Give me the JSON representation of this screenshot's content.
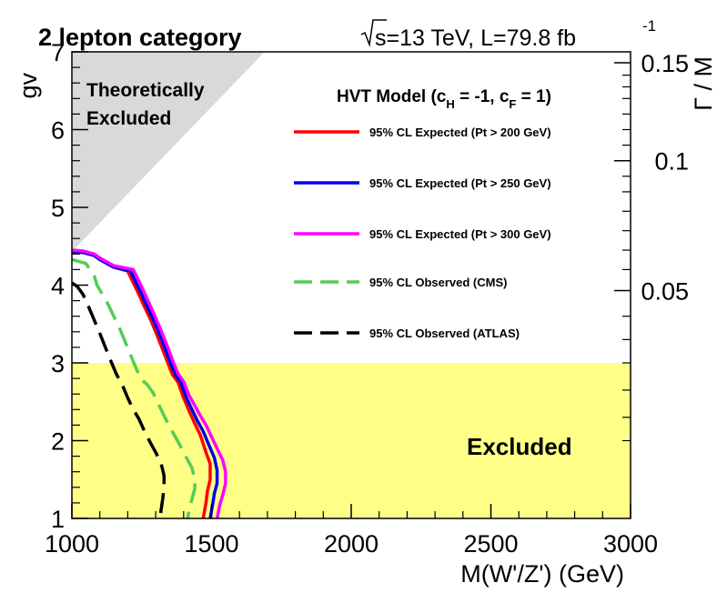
{
  "chart_data": {
    "type": "line",
    "title": "2 lepton category",
    "energy_label": "s=13 TeV, L=79.8 fb",
    "lumi_superscript": "-1",
    "xlabel": "M(W'/Z') (GeV)",
    "ylabel": "gv",
    "right_axis_label": "Γ / M",
    "xlim": [
      1000,
      3000
    ],
    "ylim": [
      1,
      7
    ],
    "x_ticks": [
      1000,
      1500,
      2000,
      2500,
      3000
    ],
    "x_tick_labels": [
      "1000",
      "1500",
      "2000",
      "2500",
      "3000"
    ],
    "y_ticks": [
      1,
      2,
      3,
      4,
      5,
      6,
      7
    ],
    "y_tick_labels": [
      "1",
      "2",
      "3",
      "4",
      "5",
      "6",
      "7"
    ],
    "right_ticks": [
      {
        "label": "0.05",
        "gv": 3.93
      },
      {
        "label": "0.1",
        "gv": 5.6
      },
      {
        "label": "0.15",
        "gv": 6.86
      }
    ],
    "legend": {
      "title_main": "HVT Model (c",
      "title_sub1": "H",
      "title_mid": " = -1, c",
      "title_sub2": "F",
      "title_end": " = 1)"
    },
    "theory_excluded": {
      "label_line1": "Theoretically",
      "label_line2": "Excluded",
      "polygon": [
        [
          1000,
          7
        ],
        [
          1690,
          7
        ],
        [
          1000,
          4.43
        ]
      ]
    },
    "excluded_band": {
      "label": "Excluded",
      "y_range": [
        1,
        3.0
      ],
      "color": "#ffff88"
    },
    "series": [
      {
        "name": "95% CL Expected (Pt > 200 GeV)",
        "color": "#ff0000",
        "dash": "solid",
        "x": [
          1000,
          1040,
          1080,
          1100,
          1150,
          1200,
          1220,
          1240,
          1260,
          1280,
          1300,
          1320,
          1340,
          1360,
          1380,
          1400,
          1420,
          1440,
          1460,
          1480,
          1495,
          1495,
          1485,
          1480,
          1470
        ],
        "y": [
          4.43,
          4.42,
          4.38,
          4.33,
          4.23,
          4.18,
          4.03,
          3.88,
          3.72,
          3.57,
          3.4,
          3.22,
          3.03,
          2.85,
          2.75,
          2.55,
          2.38,
          2.22,
          2.07,
          1.85,
          1.7,
          1.5,
          1.35,
          1.2,
          1.0
        ]
      },
      {
        "name": "95% CL Expected (Pt > 250 GeV)",
        "color": "#0000ee",
        "dash": "solid",
        "x": [
          1000,
          1040,
          1080,
          1100,
          1150,
          1210,
          1230,
          1250,
          1270,
          1290,
          1310,
          1330,
          1350,
          1370,
          1390,
          1410,
          1430,
          1450,
          1470,
          1490,
          1510,
          1520,
          1520,
          1510,
          1505,
          1495
        ],
        "y": [
          4.43,
          4.42,
          4.38,
          4.33,
          4.23,
          4.18,
          4.03,
          3.88,
          3.72,
          3.57,
          3.4,
          3.22,
          3.03,
          2.85,
          2.75,
          2.55,
          2.4,
          2.25,
          2.12,
          1.95,
          1.78,
          1.62,
          1.45,
          1.32,
          1.2,
          1.0
        ]
      },
      {
        "name": "95% CL Expected (Pt > 300 GeV)",
        "color": "#ff00ff",
        "dash": "solid",
        "x": [
          1000,
          1040,
          1080,
          1100,
          1150,
          1220,
          1240,
          1260,
          1280,
          1300,
          1320,
          1340,
          1360,
          1380,
          1400,
          1420,
          1440,
          1460,
          1480,
          1500,
          1520,
          1540,
          1550,
          1550,
          1540,
          1530,
          1520
        ],
        "y": [
          4.45,
          4.44,
          4.4,
          4.35,
          4.25,
          4.2,
          4.05,
          3.9,
          3.74,
          3.58,
          3.41,
          3.23,
          3.04,
          2.86,
          2.76,
          2.58,
          2.45,
          2.32,
          2.2,
          2.05,
          1.9,
          1.75,
          1.6,
          1.45,
          1.3,
          1.18,
          1.0
        ]
      },
      {
        "name": "95% CL Observed (CMS)",
        "color": "#55cc55",
        "dash": "long",
        "x": [
          1000,
          1050,
          1080,
          1090,
          1110,
          1130,
          1150,
          1170,
          1190,
          1210,
          1230,
          1250,
          1270,
          1290,
          1310,
          1330,
          1350,
          1370,
          1390,
          1410,
          1430,
          1440,
          1440,
          1430,
          1420,
          1415
        ],
        "y": [
          4.33,
          4.28,
          4.12,
          4.0,
          3.88,
          3.75,
          3.6,
          3.45,
          3.28,
          3.1,
          2.93,
          2.78,
          2.72,
          2.62,
          2.47,
          2.32,
          2.18,
          2.05,
          1.92,
          1.78,
          1.65,
          1.5,
          1.38,
          1.25,
          1.12,
          1.0
        ]
      },
      {
        "name": "95% CL Observed (ATLAS)",
        "color": "#000000",
        "dash": "long",
        "x": [
          1000,
          1020,
          1040,
          1060,
          1080,
          1100,
          1120,
          1140,
          1160,
          1180,
          1200,
          1220,
          1240,
          1260,
          1280,
          1300,
          1320,
          1330,
          1330,
          1325,
          1320,
          1315
        ],
        "y": [
          4.03,
          3.98,
          3.88,
          3.72,
          3.55,
          3.38,
          3.2,
          3.02,
          2.85,
          2.72,
          2.55,
          2.4,
          2.28,
          2.12,
          1.98,
          1.85,
          1.7,
          1.55,
          1.4,
          1.25,
          1.12,
          1.0
        ]
      }
    ]
  }
}
